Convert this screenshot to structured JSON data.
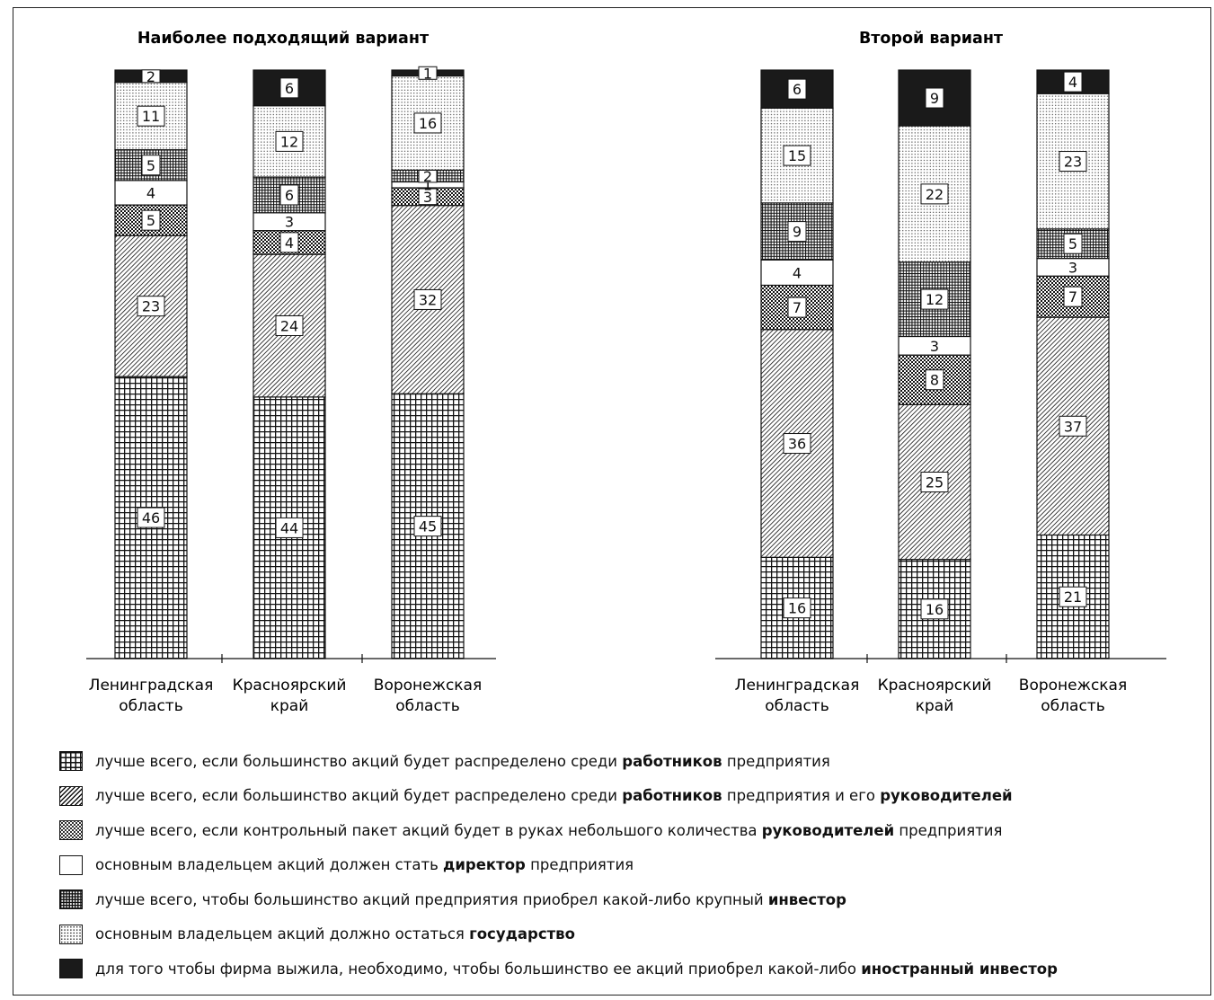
{
  "chart_data": [
    {
      "type": "bar",
      "stacked": true,
      "title": "Наиболее подходящий вариант",
      "categories": [
        "Ленинградская область",
        "Красноярский край",
        "Воронежская область"
      ],
      "series": [
        {
          "key": "workers",
          "values": [
            46,
            44,
            45
          ]
        },
        {
          "key": "workers_managers",
          "values": [
            23,
            24,
            32
          ]
        },
        {
          "key": "managers",
          "values": [
            5,
            4,
            3
          ]
        },
        {
          "key": "director",
          "values": [
            4,
            3,
            1
          ]
        },
        {
          "key": "investor",
          "values": [
            5,
            6,
            2
          ]
        },
        {
          "key": "state",
          "values": [
            11,
            12,
            16
          ]
        },
        {
          "key": "foreign_investor",
          "values": [
            2,
            6,
            1
          ]
        }
      ]
    },
    {
      "type": "bar",
      "stacked": true,
      "title": "Второй вариант",
      "categories": [
        "Ленинградская область",
        "Красноярский край",
        "Воронежская область"
      ],
      "series": [
        {
          "key": "workers",
          "values": [
            16,
            16,
            21
          ]
        },
        {
          "key": "workers_managers",
          "values": [
            36,
            25,
            37
          ]
        },
        {
          "key": "managers",
          "values": [
            7,
            8,
            7
          ]
        },
        {
          "key": "director",
          "values": [
            4,
            3,
            3
          ]
        },
        {
          "key": "investor",
          "values": [
            9,
            12,
            5
          ]
        },
        {
          "key": "state",
          "values": [
            15,
            22,
            23
          ]
        },
        {
          "key": "foreign_investor",
          "values": [
            6,
            9,
            4
          ]
        }
      ]
    }
  ],
  "category_lines": [
    [
      "Ленинградская",
      "область"
    ],
    [
      "Красноярский",
      "край"
    ],
    [
      "Воронежская",
      "область"
    ]
  ],
  "legend": [
    {
      "key": "workers",
      "parts": [
        "лучше всего, если большинство акций будет распределено среди ",
        "работников",
        " предприятия"
      ]
    },
    {
      "key": "workers_managers",
      "parts": [
        "лучше всего, если большинство акций будет распределено среди ",
        "работников",
        " предприятия и его ",
        "руководителей"
      ]
    },
    {
      "key": "managers",
      "parts": [
        "лучше всего, если контрольный пакет акций будет в руках небольшого количества ",
        "руководителей",
        " предприятия"
      ]
    },
    {
      "key": "director",
      "parts": [
        "основным владельцем акций должен стать ",
        "директор",
        " предприятия"
      ]
    },
    {
      "key": "investor",
      "parts": [
        "лучше всего, чтобы большинство акций предприятия приобрел какой-либо крупный ",
        "инвестор"
      ]
    },
    {
      "key": "state",
      "parts": [
        "основным владельцем акций должно остаться ",
        "государство"
      ]
    },
    {
      "key": "foreign_investor",
      "parts": [
        "для того чтобы фирма выжила, необходимо, чтобы большинство ее акций приобрел какой-либо ",
        "иностранный инвестор"
      ]
    }
  ]
}
